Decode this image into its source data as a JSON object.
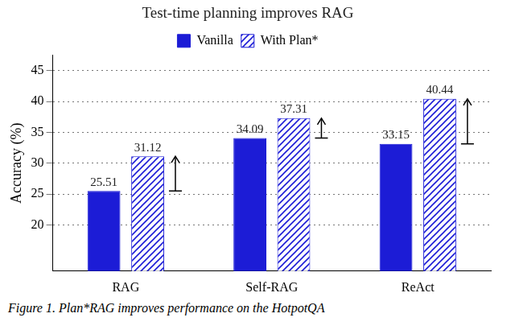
{
  "chart_data": {
    "type": "bar",
    "title": "Test-time planning improves RAG",
    "y_label": "Accuracy (%)",
    "categories": [
      "RAG",
      "Self-RAG",
      "ReAct"
    ],
    "series": [
      {
        "name": "Vanilla",
        "color": "#1c1cd6",
        "values": [
          25.51,
          34.09,
          33.15
        ]
      },
      {
        "name": "With Plan*",
        "color": "#1c1cd6",
        "values": [
          31.12,
          37.31,
          40.44
        ]
      }
    ],
    "ylim": [
      12.5,
      47.5
    ],
    "yticks": [
      20,
      25,
      30,
      35,
      40,
      45
    ],
    "grid": true,
    "legend": "top",
    "data_labels": true
  },
  "caption": "Figure 1. Plan*RAG improves performance on the HotpotQA"
}
